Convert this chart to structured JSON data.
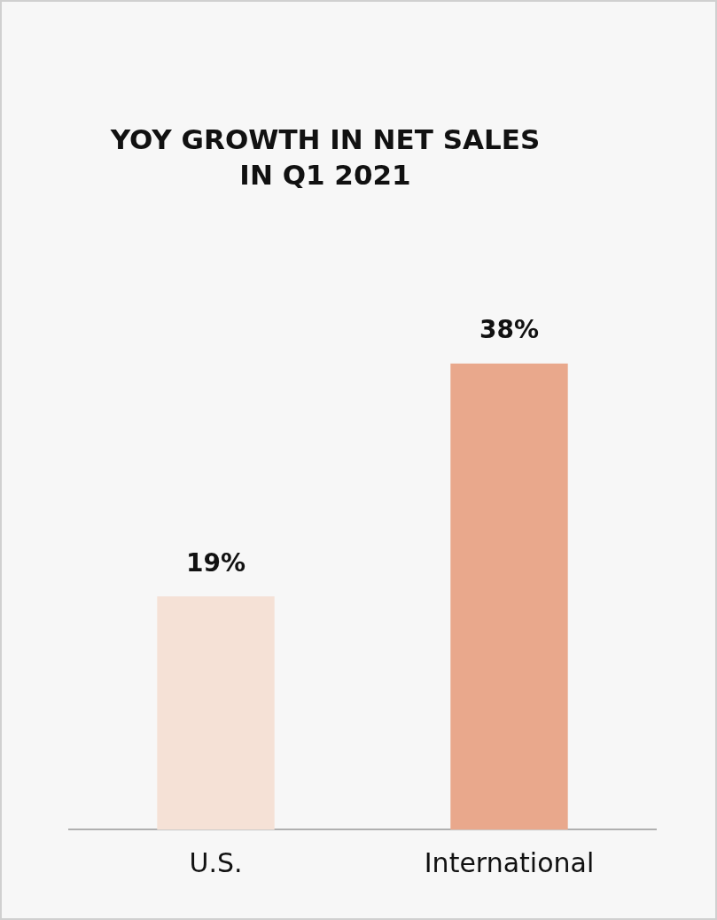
{
  "chart_data": {
    "type": "bar",
    "title": "YOY GROWTH IN NET SALES IN Q1 2021",
    "categories": [
      "U.S.",
      "International"
    ],
    "values": [
      19,
      38
    ],
    "colors": [
      "#f5e1d6",
      "#e9a88c"
    ],
    "value_labels": [
      "19%",
      "38%"
    ],
    "grid": false,
    "legend": false,
    "tick_labels": "x"
  }
}
